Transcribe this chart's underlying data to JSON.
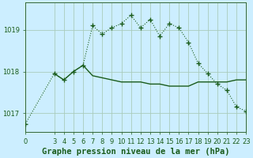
{
  "bg_color": "#cceeff",
  "plot_bg_color": "#cceeff",
  "grid_color": "#aaccbb",
  "line_color": "#1a5c1a",
  "xlim": [
    0,
    23
  ],
  "ylim": [
    1016.55,
    1019.65
  ],
  "yticks": [
    1017,
    1018,
    1019
  ],
  "xticks": [
    0,
    3,
    4,
    5,
    6,
    7,
    8,
    9,
    10,
    11,
    12,
    13,
    14,
    15,
    16,
    17,
    18,
    19,
    20,
    21,
    22,
    23
  ],
  "dotted_x": [
    0,
    3,
    4,
    5,
    6,
    7,
    8,
    9,
    10,
    11,
    12,
    13,
    14,
    15,
    16,
    17,
    18,
    19,
    20,
    21,
    22,
    23
  ],
  "dotted_y": [
    1016.75,
    1017.95,
    1017.8,
    1018.0,
    1018.15,
    1019.1,
    1018.9,
    1019.05,
    1019.15,
    1019.35,
    1019.05,
    1019.25,
    1018.85,
    1019.15,
    1019.05,
    1018.7,
    1018.2,
    1017.95,
    1017.7,
    1017.55,
    1017.15,
    1017.05
  ],
  "solid_x": [
    3,
    4,
    5,
    6,
    7,
    8,
    9,
    10,
    11,
    12,
    13,
    14,
    15,
    16,
    17,
    18,
    19,
    20,
    21,
    22,
    23
  ],
  "solid_y": [
    1017.95,
    1017.8,
    1018.0,
    1018.15,
    1017.9,
    1017.85,
    1017.8,
    1017.75,
    1017.75,
    1017.75,
    1017.7,
    1017.7,
    1017.65,
    1017.65,
    1017.65,
    1017.75,
    1017.75,
    1017.75,
    1017.75,
    1017.8,
    1017.8
  ],
  "xlabel": "Graphe pression niveau de la mer (hPa)",
  "xlabel_fontsize": 7.5,
  "tick_fontsize": 6.0
}
